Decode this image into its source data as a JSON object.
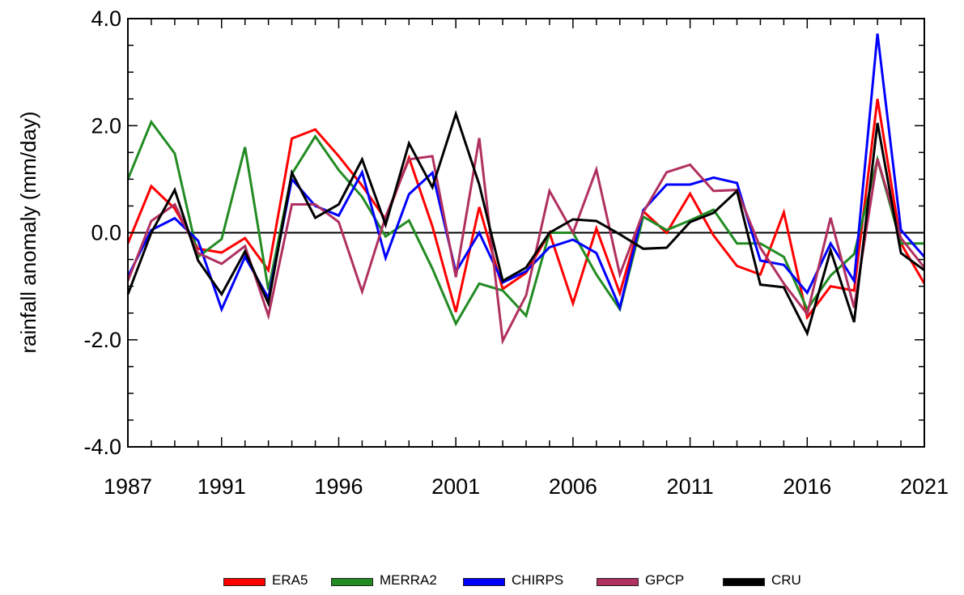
{
  "chart_data": {
    "type": "line",
    "title": "",
    "xlabel": "",
    "ylabel": "rainfall anomaly (mm/day)",
    "xlim": [
      1987,
      2021
    ],
    "ylim": [
      -4.0,
      4.0
    ],
    "x_ticks": [
      "1987",
      "1991",
      "1996",
      "2001",
      "2006",
      "2011",
      "2016",
      "2021"
    ],
    "y_ticks": [
      "4.0",
      "2.0",
      "0.0",
      "-2.0",
      "-4.0"
    ],
    "grid": false,
    "reference_line_y": 0.0,
    "legend_position": "bottom",
    "x": [
      1987,
      1988,
      1989,
      1990,
      1991,
      1992,
      1993,
      1994,
      1995,
      1996,
      1997,
      1998,
      1999,
      2000,
      2001,
      2002,
      2003,
      2004,
      2005,
      2006,
      2007,
      2008,
      2009,
      2010,
      2011,
      2012,
      2013,
      2014,
      2015,
      2016,
      2017,
      2018,
      2019,
      2020,
      2021
    ],
    "series": [
      {
        "name": "ERA5",
        "color": "#ff0000",
        "values": [
          -0.2,
          0.87,
          0.45,
          -0.3,
          -0.37,
          -0.1,
          -0.7,
          1.76,
          1.93,
          1.43,
          0.88,
          0.25,
          1.4,
          0.12,
          -1.48,
          0.48,
          -1.05,
          -0.75,
          0.0,
          -1.32,
          0.08,
          -1.13,
          0.4,
          0.0,
          0.73,
          -0.05,
          -0.62,
          -0.78,
          0.38,
          -1.58,
          -1.0,
          -1.08,
          2.5,
          -0.2,
          -0.95
        ]
      },
      {
        "name": "MERRA2",
        "color": "#228b22",
        "values": [
          1.0,
          2.07,
          1.48,
          -0.45,
          -0.12,
          1.6,
          -1.07,
          1.1,
          1.8,
          1.17,
          0.67,
          -0.07,
          0.23,
          -0.67,
          -1.7,
          -0.95,
          -1.08,
          -1.55,
          0.0,
          0.0,
          -0.78,
          -1.43,
          0.3,
          0.05,
          0.23,
          0.43,
          -0.2,
          -0.2,
          -0.45,
          -1.43,
          -0.8,
          -0.4,
          1.37,
          -0.2,
          -0.2
        ]
      },
      {
        "name": "CHIRPS",
        "color": "#0000ff",
        "values": [
          -0.82,
          0.05,
          0.27,
          -0.15,
          -1.43,
          -0.45,
          -1.22,
          1.0,
          0.5,
          0.32,
          1.13,
          -0.47,
          0.72,
          1.12,
          -0.73,
          0.0,
          -0.93,
          -0.72,
          -0.27,
          -0.13,
          -0.38,
          -1.4,
          0.42,
          0.9,
          0.9,
          1.03,
          0.93,
          -0.52,
          -0.6,
          -1.12,
          -0.2,
          -0.9,
          3.72,
          0.05,
          -0.45
        ]
      },
      {
        "name": "GPCP",
        "color": "#b03060",
        "values": [
          -0.9,
          0.22,
          0.53,
          -0.38,
          -0.58,
          -0.25,
          -1.55,
          0.53,
          0.53,
          0.2,
          -1.1,
          0.3,
          1.37,
          1.43,
          -0.83,
          1.77,
          -2.02,
          -1.17,
          0.78,
          0.0,
          1.18,
          -0.78,
          0.38,
          1.13,
          1.27,
          0.78,
          0.8,
          -0.28,
          -0.95,
          -1.52,
          0.28,
          -1.4,
          1.38,
          -0.1,
          -0.65
        ]
      },
      {
        "name": "CRU",
        "color": "#000000",
        "values": [
          -1.15,
          0.0,
          0.8,
          -0.52,
          -1.15,
          -0.35,
          -1.32,
          1.12,
          0.28,
          0.53,
          1.37,
          0.15,
          1.67,
          0.85,
          2.22,
          0.9,
          -0.9,
          -0.65,
          0.0,
          0.25,
          0.22,
          -0.03,
          -0.3,
          -0.28,
          0.2,
          0.37,
          0.78,
          -0.97,
          -1.02,
          -1.88,
          -0.33,
          -1.67,
          2.05,
          -0.38,
          -0.7
        ]
      }
    ]
  }
}
